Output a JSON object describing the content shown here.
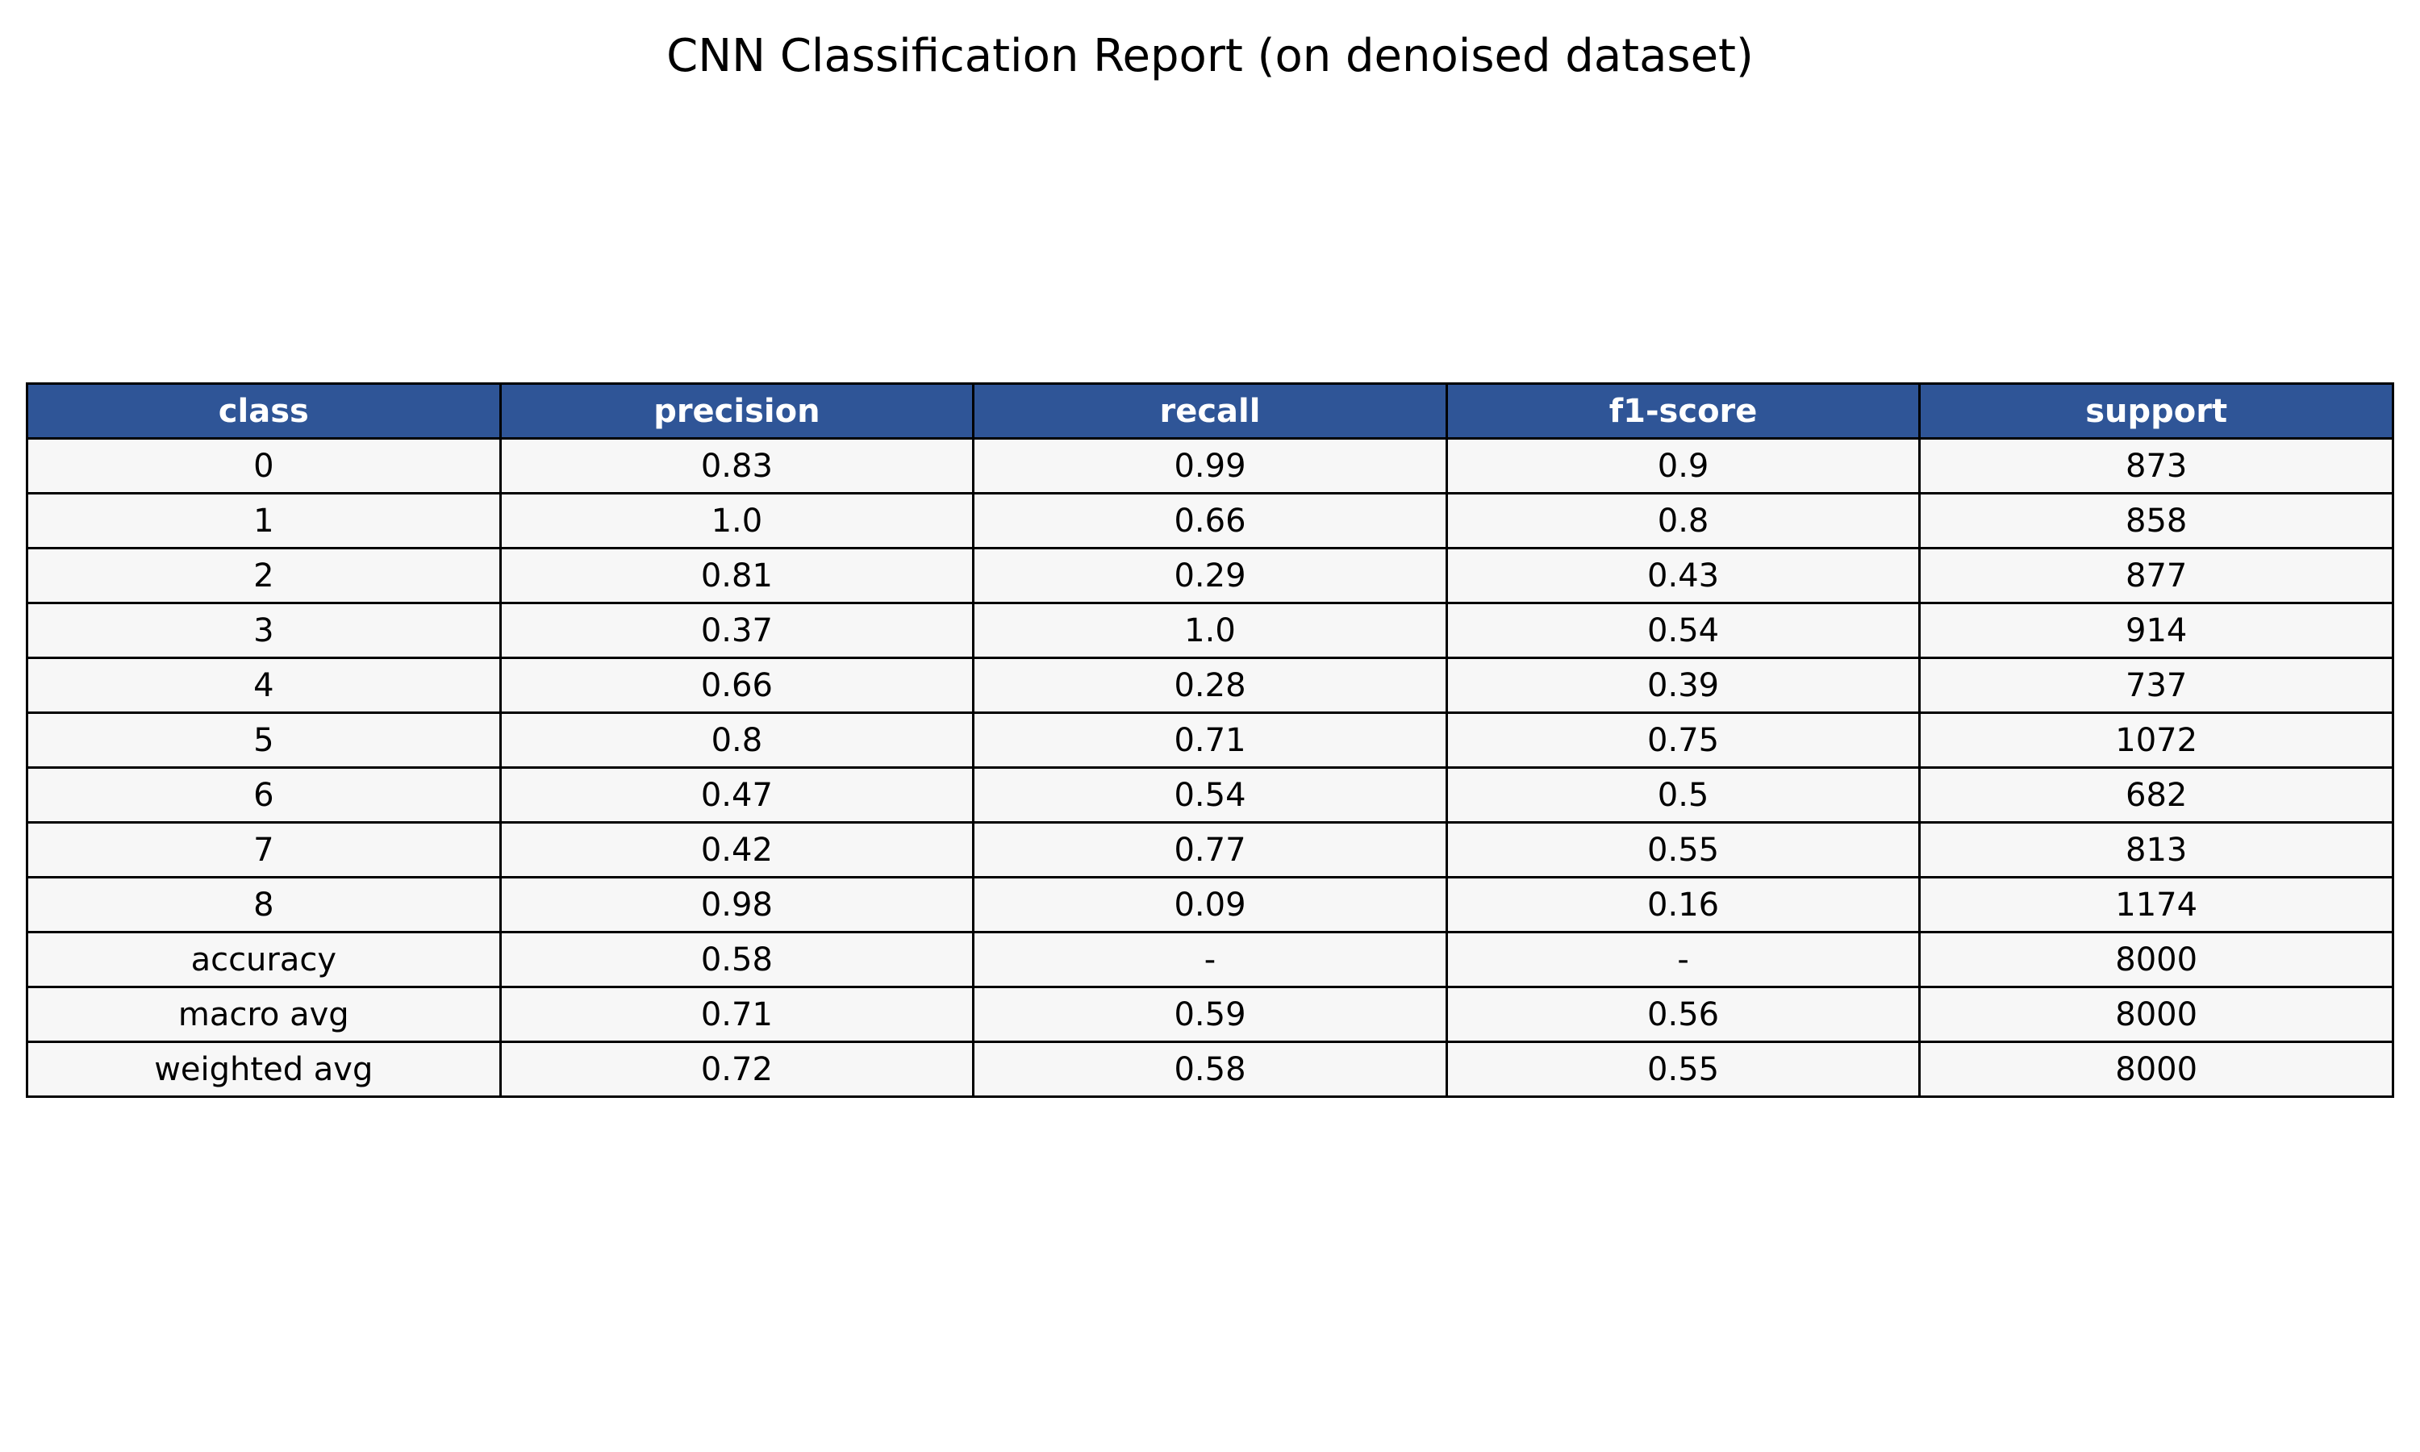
{
  "chart_data": {
    "type": "table",
    "title": "CNN Classification Report (on denoised dataset)",
    "header_color": "#2f5597",
    "cell_color": "#f7f7f7",
    "columns": [
      "class",
      "precision",
      "recall",
      "f1-score",
      "support"
    ],
    "rows": [
      [
        "0",
        "0.83",
        "0.99",
        "0.9",
        "873"
      ],
      [
        "1",
        "1.0",
        "0.66",
        "0.8",
        "858"
      ],
      [
        "2",
        "0.81",
        "0.29",
        "0.43",
        "877"
      ],
      [
        "3",
        "0.37",
        "1.0",
        "0.54",
        "914"
      ],
      [
        "4",
        "0.66",
        "0.28",
        "0.39",
        "737"
      ],
      [
        "5",
        "0.8",
        "0.71",
        "0.75",
        "1072"
      ],
      [
        "6",
        "0.47",
        "0.54",
        "0.5",
        "682"
      ],
      [
        "7",
        "0.42",
        "0.77",
        "0.55",
        "813"
      ],
      [
        "8",
        "0.98",
        "0.09",
        "0.16",
        "1174"
      ],
      [
        "accuracy",
        "0.58",
        "-",
        "-",
        "8000"
      ],
      [
        "macro avg",
        "0.71",
        "0.59",
        "0.56",
        "8000"
      ],
      [
        "weighted avg",
        "0.72",
        "0.58",
        "0.55",
        "8000"
      ]
    ]
  }
}
